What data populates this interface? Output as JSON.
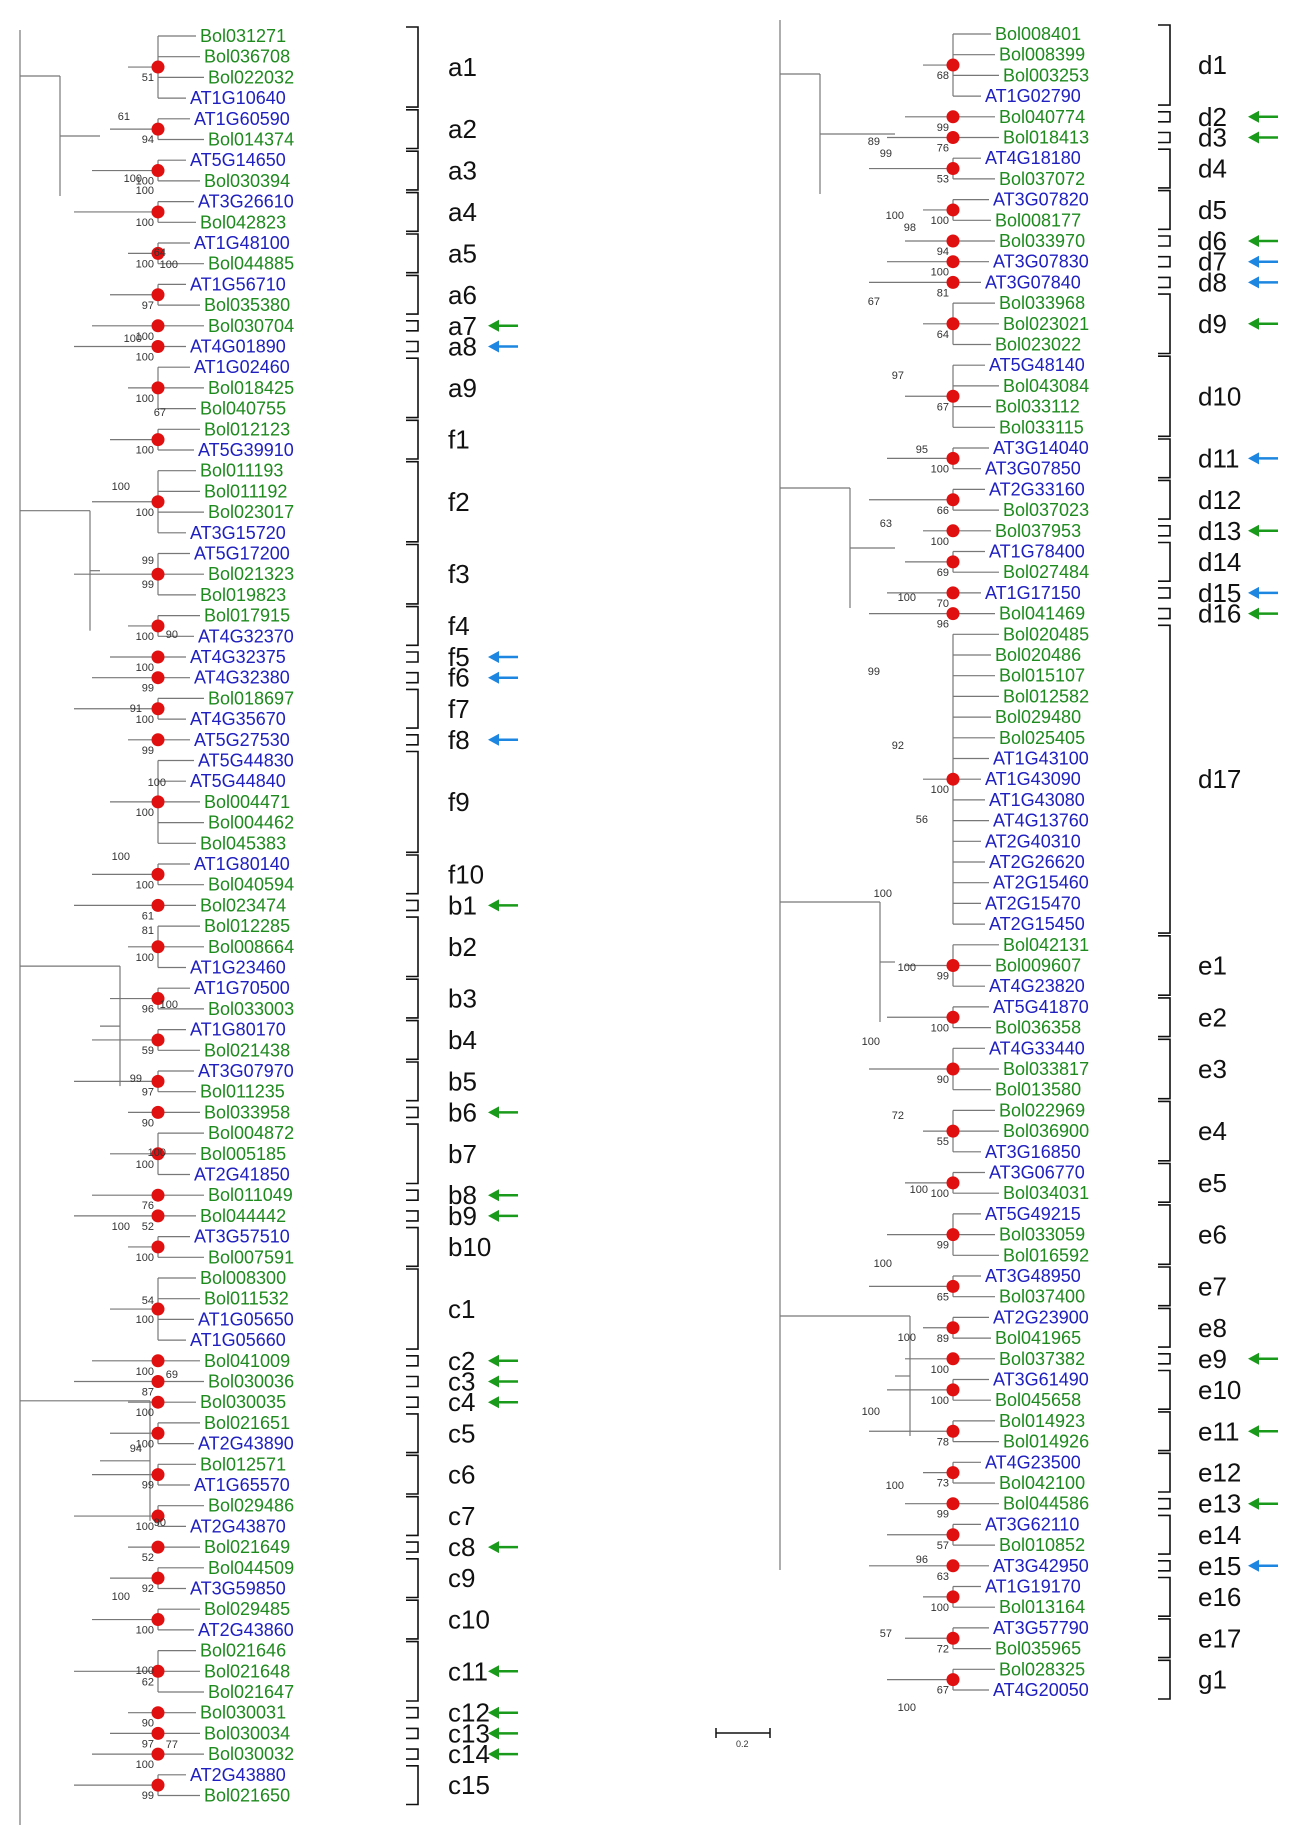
{
  "colors": {
    "brassica": "#1e8a1e",
    "arabidopsis": "#2020c0",
    "red_node": "#e01010",
    "green_arrow": "#1a9a1a",
    "blue_arrow": "#1c86e0",
    "branch": "#777777",
    "label_text": "#111111"
  },
  "tree": {
    "left": {
      "taxa": [
        "Bol031271",
        "Bol036708",
        "Bol022032",
        "AT1G10640",
        "AT1G60590",
        "Bol014374",
        "AT5G14650",
        "Bol030394",
        "AT3G26610",
        "Bol042823",
        "AT1G48100",
        "Bol044885",
        "AT1G56710",
        "Bol035380",
        "Bol030704",
        "AT4G01890",
        "AT1G02460",
        "Bol018425",
        "Bol040755",
        "Bol012123",
        "AT5G39910",
        "Bol011193",
        "Bol011192",
        "Bol023017",
        "AT3G15720",
        "AT5G17200",
        "Bol021323",
        "Bol019823",
        "Bol017915",
        "AT4G32370",
        "AT4G32375",
        "AT4G32380",
        "Bol018697",
        "AT4G35670",
        "AT5G27530",
        "AT5G44830",
        "AT5G44840",
        "Bol004471",
        "Bol004462",
        "Bol045383",
        "AT1G80140",
        "Bol040594",
        "Bol023474",
        "Bol012285",
        "Bol008664",
        "AT1G23460",
        "AT1G70500",
        "Bol033003",
        "AT1G80170",
        "Bol021438",
        "AT3G07970",
        "Bol011235",
        "Bol033958",
        "Bol004872",
        "Bol005185",
        "AT2G41850",
        "Bol011049",
        "Bol044442",
        "AT3G57510",
        "Bol007591",
        "Bol008300",
        "Bol011532",
        "AT1G05650",
        "AT1G05660",
        "Bol041009",
        "Bol030036",
        "Bol030035",
        "Bol021651",
        "AT2G43890",
        "Bol012571",
        "AT1G65570",
        "Bol029486",
        "AT2G43870",
        "Bol021649",
        "Bol044509",
        "AT3G59850",
        "Bol029485",
        "AT2G43860",
        "Bol021646",
        "Bol021648",
        "Bol021647",
        "Bol030031",
        "Bol030034",
        "Bol030032",
        "AT2G43880",
        "Bol021650"
      ],
      "clades": [
        {
          "label": "a1",
          "s": 0,
          "e": 3
        },
        {
          "label": "a2",
          "s": 4,
          "e": 5
        },
        {
          "label": "a3",
          "s": 6,
          "e": 7
        },
        {
          "label": "a4",
          "s": 8,
          "e": 9
        },
        {
          "label": "a5",
          "s": 10,
          "e": 11
        },
        {
          "label": "a6",
          "s": 12,
          "e": 13
        },
        {
          "label": "a7",
          "s": 14,
          "e": 14,
          "arrow": "green"
        },
        {
          "label": "a8",
          "s": 15,
          "e": 15,
          "arrow": "blue"
        },
        {
          "label": "a9",
          "s": 16,
          "e": 18
        },
        {
          "label": "f1",
          "s": 19,
          "e": 20
        },
        {
          "label": "f2",
          "s": 21,
          "e": 24
        },
        {
          "label": "f3",
          "s": 25,
          "e": 27
        },
        {
          "label": "f4",
          "s": 28,
          "e": 29
        },
        {
          "label": "f5",
          "s": 30,
          "e": 30,
          "arrow": "blue"
        },
        {
          "label": "f6",
          "s": 31,
          "e": 31,
          "arrow": "blue"
        },
        {
          "label": "f7",
          "s": 32,
          "e": 33
        },
        {
          "label": "f8",
          "s": 34,
          "e": 34,
          "arrow": "blue"
        },
        {
          "label": "f9",
          "s": 35,
          "e": 39
        },
        {
          "label": "f10",
          "s": 40,
          "e": 41
        },
        {
          "label": "b1",
          "s": 42,
          "e": 42,
          "arrow": "green"
        },
        {
          "label": "b2",
          "s": 43,
          "e": 45
        },
        {
          "label": "b3",
          "s": 46,
          "e": 47
        },
        {
          "label": "b4",
          "s": 48,
          "e": 49
        },
        {
          "label": "b5",
          "s": 50,
          "e": 51
        },
        {
          "label": "b6",
          "s": 52,
          "e": 52,
          "arrow": "green"
        },
        {
          "label": "b7",
          "s": 53,
          "e": 55
        },
        {
          "label": "b8",
          "s": 56,
          "e": 56,
          "arrow": "green"
        },
        {
          "label": "b9",
          "s": 57,
          "e": 57,
          "arrow": "green"
        },
        {
          "label": "b10",
          "s": 58,
          "e": 59
        },
        {
          "label": "c1",
          "s": 60,
          "e": 63
        },
        {
          "label": "c2",
          "s": 64,
          "e": 64,
          "arrow": "green"
        },
        {
          "label": "c3",
          "s": 65,
          "e": 65,
          "arrow": "green"
        },
        {
          "label": "c4",
          "s": 66,
          "e": 66,
          "arrow": "green"
        },
        {
          "label": "c5",
          "s": 67,
          "e": 68
        },
        {
          "label": "c6",
          "s": 69,
          "e": 70
        },
        {
          "label": "c7",
          "s": 71,
          "e": 72
        },
        {
          "label": "c8",
          "s": 73,
          "e": 73,
          "arrow": "green"
        },
        {
          "label": "c9",
          "s": 74,
          "e": 75
        },
        {
          "label": "c10",
          "s": 76,
          "e": 77
        },
        {
          "label": "c11",
          "s": 78,
          "e": 80,
          "arrow": "green"
        },
        {
          "label": "c12",
          "s": 81,
          "e": 81,
          "arrow": "green"
        },
        {
          "label": "c13",
          "s": 82,
          "e": 82,
          "arrow": "green"
        },
        {
          "label": "c14",
          "s": 83,
          "e": 83,
          "arrow": "green"
        },
        {
          "label": "c15",
          "s": 84,
          "e": 85
        }
      ]
    },
    "right": {
      "taxa": [
        "Bol008401",
        "Bol008399",
        "Bol003253",
        "AT1G02790",
        "Bol040774",
        "Bol018413",
        "AT4G18180",
        "Bol037072",
        "AT3G07820",
        "Bol008177",
        "Bol033970",
        "AT3G07830",
        "AT3G07840",
        "Bol033968",
        "Bol023021",
        "Bol023022",
        "AT5G48140",
        "Bol043084",
        "Bol033112",
        "Bol033115",
        "AT3G14040",
        "AT3G07850",
        "AT2G33160",
        "Bol037023",
        "Bol037953",
        "AT1G78400",
        "Bol027484",
        "AT1G17150",
        "Bol041469",
        "Bol020485",
        "Bol020486",
        "Bol015107",
        "Bol012582",
        "Bol029480",
        "Bol025405",
        "AT1G43100",
        "AT1G43090",
        "AT1G43080",
        "AT4G13760",
        "AT2G40310",
        "AT2G26620",
        "AT2G15460",
        "AT2G15470",
        "AT2G15450",
        "Bol042131",
        "Bol009607",
        "AT4G23820",
        "AT5G41870",
        "Bol036358",
        "AT4G33440",
        "Bol033817",
        "Bol013580",
        "Bol022969",
        "Bol036900",
        "AT3G16850",
        "AT3G06770",
        "Bol034031",
        "AT5G49215",
        "Bol033059",
        "Bol016592",
        "AT3G48950",
        "Bol037400",
        "AT2G23900",
        "Bol041965",
        "Bol037382",
        "AT3G61490",
        "Bol045658",
        "Bol014923",
        "Bol014926",
        "AT4G23500",
        "Bol042100",
        "Bol044586",
        "AT3G62110",
        "Bol010852",
        "AT3G42950",
        "AT1G19170",
        "Bol013164",
        "AT3G57790",
        "Bol035965",
        "Bol028325",
        "AT4G20050"
      ],
      "clades": [
        {
          "label": "d1",
          "s": 0,
          "e": 3
        },
        {
          "label": "d2",
          "s": 4,
          "e": 4,
          "arrow": "green"
        },
        {
          "label": "d3",
          "s": 5,
          "e": 5,
          "arrow": "green"
        },
        {
          "label": "d4",
          "s": 6,
          "e": 7
        },
        {
          "label": "d5",
          "s": 8,
          "e": 9
        },
        {
          "label": "d6",
          "s": 10,
          "e": 10,
          "arrow": "green"
        },
        {
          "label": "d7",
          "s": 11,
          "e": 11,
          "arrow": "blue"
        },
        {
          "label": "d8",
          "s": 12,
          "e": 12,
          "arrow": "blue"
        },
        {
          "label": "d9",
          "s": 13,
          "e": 15,
          "arrow": "green"
        },
        {
          "label": "d10",
          "s": 16,
          "e": 19
        },
        {
          "label": "d11",
          "s": 20,
          "e": 21,
          "arrow": "blue"
        },
        {
          "label": "d12",
          "s": 22,
          "e": 23
        },
        {
          "label": "d13",
          "s": 24,
          "e": 24,
          "arrow": "green"
        },
        {
          "label": "d14",
          "s": 25,
          "e": 26
        },
        {
          "label": "d15",
          "s": 27,
          "e": 27,
          "arrow": "blue"
        },
        {
          "label": "d16",
          "s": 28,
          "e": 28,
          "arrow": "green"
        },
        {
          "label": "d17",
          "s": 29,
          "e": 43
        },
        {
          "label": "e1",
          "s": 44,
          "e": 46
        },
        {
          "label": "e2",
          "s": 47,
          "e": 48
        },
        {
          "label": "e3",
          "s": 49,
          "e": 51
        },
        {
          "label": "e4",
          "s": 52,
          "e": 54
        },
        {
          "label": "e5",
          "s": 55,
          "e": 56
        },
        {
          "label": "e6",
          "s": 57,
          "e": 59
        },
        {
          "label": "e7",
          "s": 60,
          "e": 61
        },
        {
          "label": "e8",
          "s": 62,
          "e": 63
        },
        {
          "label": "e9",
          "s": 64,
          "e": 64,
          "arrow": "green"
        },
        {
          "label": "e10",
          "s": 65,
          "e": 66
        },
        {
          "label": "e11",
          "s": 67,
          "e": 68,
          "arrow": "green"
        },
        {
          "label": "e12",
          "s": 69,
          "e": 70
        },
        {
          "label": "e13",
          "s": 71,
          "e": 71,
          "arrow": "green"
        },
        {
          "label": "e14",
          "s": 72,
          "e": 73
        },
        {
          "label": "e15",
          "s": 74,
          "e": 74,
          "arrow": "blue"
        },
        {
          "label": "e16",
          "s": 75,
          "e": 76
        },
        {
          "label": "e17",
          "s": 77,
          "e": 78
        },
        {
          "label": "g1",
          "s": 79,
          "e": 80
        }
      ]
    },
    "scale_bar_label": "0.2",
    "bootstrap_labels": [
      "51",
      "94",
      "100",
      "100",
      "100",
      "97",
      "100",
      "100",
      "100",
      "100",
      "100",
      "99",
      "100",
      "100",
      "99",
      "100",
      "99",
      "100",
      "100",
      "61",
      "100",
      "96",
      "59",
      "97",
      "90",
      "100",
      "76",
      "52",
      "100",
      "100",
      "100",
      "87",
      "100",
      "100",
      "99",
      "100",
      "52",
      "92",
      "100",
      "62",
      "90",
      "97",
      "100",
      "99",
      "68",
      "99",
      "76",
      "53",
      "100",
      "94",
      "100",
      "81",
      "64",
      "67",
      "100",
      "66",
      "100",
      "69",
      "70",
      "96",
      "100",
      "99",
      "100",
      "90",
      "55",
      "100",
      "99",
      "65",
      "89",
      "100",
      "100",
      "78",
      "73",
      "99",
      "57",
      "63",
      "100",
      "72",
      "67",
      "61",
      "99",
      "100",
      "98",
      "100",
      "67",
      "100",
      "97",
      "67",
      "95",
      "100",
      "63",
      "99",
      "100",
      "90",
      "99",
      "91",
      "92",
      "100",
      "56",
      "100",
      "100",
      "81",
      "100",
      "100",
      "100",
      "99",
      "72",
      "100",
      "100",
      "100",
      "100",
      "54",
      "100",
      "69",
      "100",
      "94",
      "100",
      "90",
      "96",
      "100",
      "57",
      "100",
      "100",
      "77",
      "89",
      "100",
      "100",
      "64"
    ]
  }
}
